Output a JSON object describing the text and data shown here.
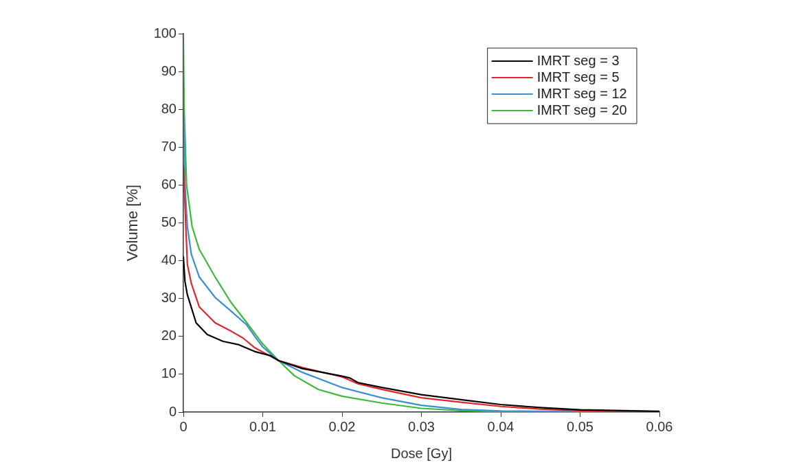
{
  "chart_data": {
    "type": "line",
    "xlabel": "Dose [Gy]",
    "ylabel": "Volume [%]",
    "xlim": [
      0,
      0.06
    ],
    "xticks": [
      0,
      0.01,
      0.02,
      0.03,
      0.04,
      0.05,
      0.06
    ],
    "ylim": [
      0,
      100
    ],
    "yticks": [
      0,
      10,
      20,
      30,
      40,
      50,
      60,
      70,
      80,
      90,
      100
    ],
    "grid": false,
    "legend": "top right",
    "marker": "none",
    "line_style": "solid",
    "series": [
      {
        "name": "IMRT seg = 3",
        "color": "#000000",
        "x": [
          0,
          0.0002,
          0.0005,
          0.0016,
          0.003,
          0.005,
          0.007,
          0.009,
          0.011,
          0.012,
          0.015,
          0.02,
          0.021,
          0.022,
          0.025,
          0.03,
          0.035,
          0.04,
          0.045,
          0.05,
          0.06
        ],
        "values": [
          41,
          34.5,
          31,
          23.6,
          20.5,
          18.7,
          17.8,
          16,
          14.9,
          13.6,
          11.5,
          9.5,
          9,
          7.8,
          6.5,
          4.6,
          3.3,
          2,
          1.2,
          0.6,
          0.2
        ]
      },
      {
        "name": "IMRT seg = 5",
        "color": "#e0262a",
        "x": [
          0,
          0.0005,
          0.001,
          0.002,
          0.004,
          0.006,
          0.0075,
          0.009,
          0.012,
          0.015,
          0.02,
          0.022,
          0.025,
          0.03,
          0.035,
          0.04,
          0.045,
          0.05,
          0.06
        ],
        "values": [
          65,
          39,
          34,
          27.8,
          23.6,
          21.4,
          19.6,
          17,
          13.6,
          11.8,
          9.3,
          7.5,
          6,
          3.8,
          2.6,
          1.5,
          0.8,
          0.4,
          0.1
        ]
      },
      {
        "name": "IMRT seg = 12",
        "color": "#3a8fd0",
        "x": [
          0,
          0.0002,
          0.0005,
          0.001,
          0.002,
          0.004,
          0.006,
          0.008,
          0.009,
          0.01,
          0.012,
          0.015,
          0.02,
          0.025,
          0.03,
          0.035,
          0.04,
          0.05,
          0.06
        ],
        "values": [
          80,
          60,
          49,
          41.7,
          35.7,
          30.3,
          26.7,
          23,
          20,
          17.2,
          13.6,
          10.5,
          6.5,
          3.8,
          1.8,
          0.7,
          0.3,
          0.1,
          0
        ]
      },
      {
        "name": "IMRT seg = 20",
        "color": "#3cb83c",
        "x": [
          0,
          0.0001,
          0.0004,
          0.0011,
          0.002,
          0.004,
          0.006,
          0.008,
          0.01,
          0.012,
          0.014,
          0.017,
          0.02,
          0.025,
          0.03,
          0.035,
          0.04,
          0.06
        ],
        "values": [
          100,
          80,
          60,
          49,
          43,
          35.7,
          29,
          23.6,
          18,
          13.6,
          9.6,
          6,
          4.2,
          2.4,
          1,
          0.4,
          0.1,
          0
        ]
      }
    ]
  }
}
